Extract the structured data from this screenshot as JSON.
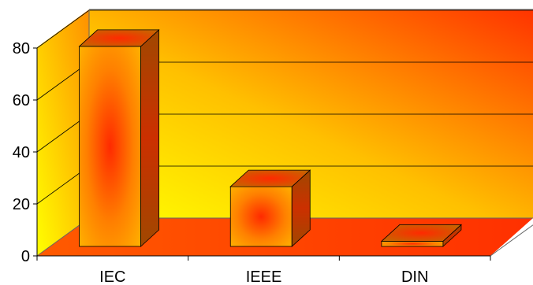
{
  "chart_data": {
    "type": "bar",
    "title": "",
    "xlabel": "",
    "ylabel": "",
    "categories": [
      "IEC",
      "IEEE",
      "DIN"
    ],
    "series": [
      {
        "values": [
          77,
          23,
          2
        ]
      }
    ],
    "ylim": [
      0,
      80
    ],
    "yticks": [
      "0",
      "20",
      "40",
      "60",
      "80"
    ],
    "grid": true,
    "legend": "none",
    "three_d": true,
    "colors": {
      "bar_center": "#ff2a00",
      "bar_edge": "#ffb000",
      "bar_side": "#a04800",
      "wall_light": "#ffff00",
      "wall_dark": "#ff3300",
      "floor": "#ff5a00",
      "axis": "#000000",
      "gridline": "#000000"
    }
  }
}
